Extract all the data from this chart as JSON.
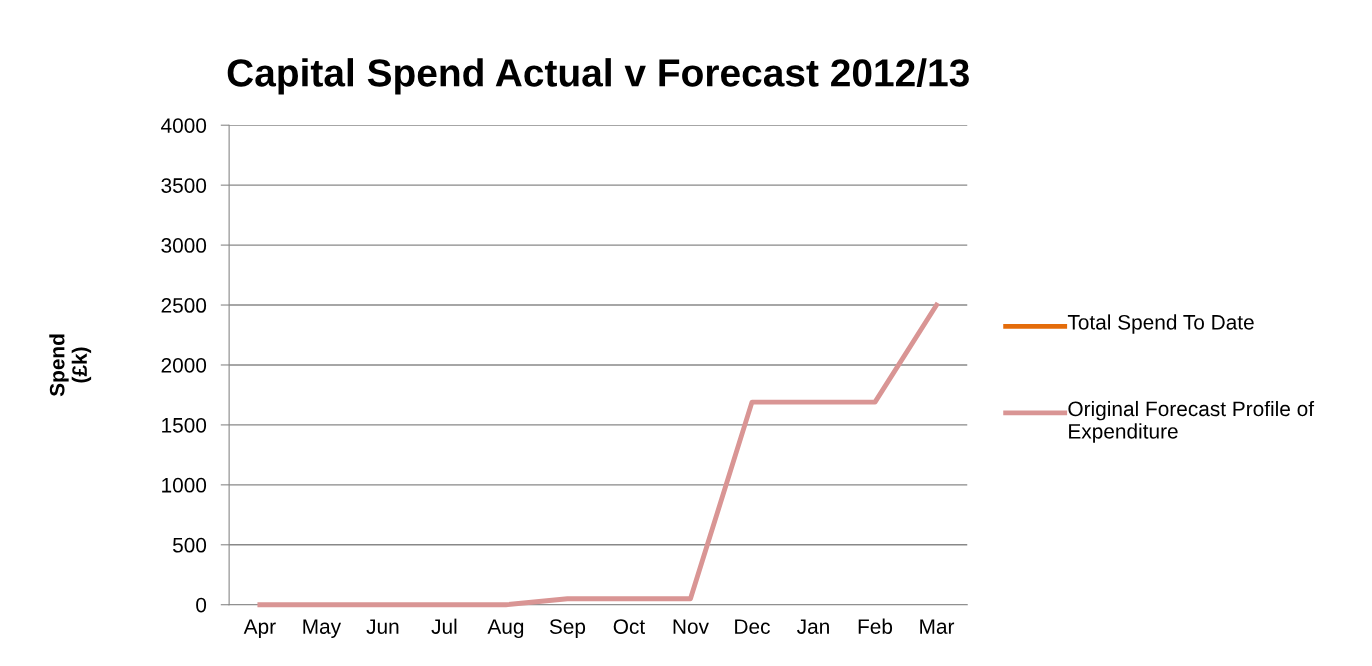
{
  "chart_data": {
    "type": "line",
    "title": "Capital Spend Actual v Forecast 2012/13",
    "ylabel": "Spend\n(£k)",
    "categories": [
      "Apr",
      "May",
      "Jun",
      "Jul",
      "Aug",
      "Sep",
      "Oct",
      "Nov",
      "Dec",
      "Jan",
      "Feb",
      "Mar"
    ],
    "series": [
      {
        "name": "Total Spend To Date",
        "color": "#e46c0a",
        "values": [
          null,
          null,
          null,
          null,
          null,
          null,
          null,
          null,
          null,
          null,
          null,
          null
        ]
      },
      {
        "name": "Original Forecast Profile of Expenditure",
        "color": "#d99594",
        "values": [
          0,
          0,
          0,
          0,
          0,
          50,
          50,
          50,
          1690,
          1690,
          1690,
          2500
        ]
      }
    ],
    "ylim": [
      0,
      4000
    ],
    "yticks": [
      0,
      500,
      1000,
      1500,
      2000,
      2500,
      3000,
      3500,
      4000
    ],
    "grid": "y",
    "legend": "right",
    "marker": "none",
    "line_style": "solid"
  }
}
